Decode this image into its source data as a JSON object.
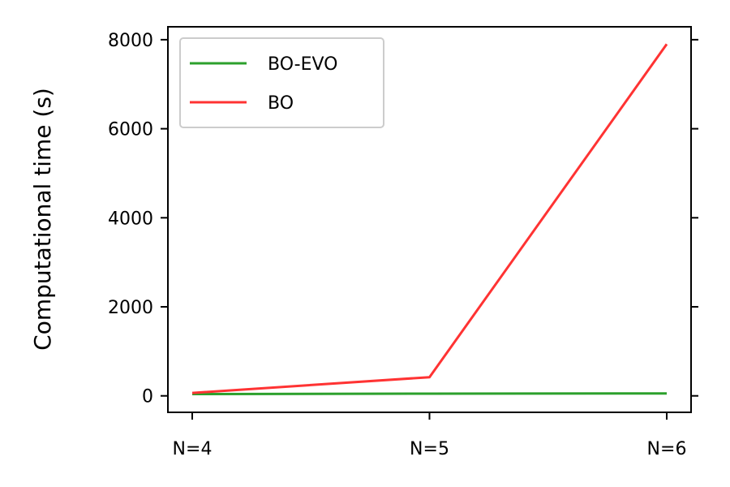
{
  "chart_data": {
    "type": "line",
    "categories": [
      "N=4",
      "N=5",
      "N=6"
    ],
    "series": [
      {
        "name": "BO-EVO",
        "values": [
          40,
          50,
          55
        ],
        "color": "#2ca02c"
      },
      {
        "name": "BO",
        "values": [
          65,
          420,
          7900
        ],
        "color": "#ff3333"
      }
    ],
    "xlabel": "",
    "ylabel": "Computational time (s)",
    "ylim": [
      -370,
      8290
    ],
    "yticks": [
      0,
      2000,
      4000,
      6000,
      8000
    ],
    "ytick_labels": [
      "0",
      "2000",
      "4000",
      "6000",
      "8000"
    ],
    "legend": "top-left",
    "grid": false
  }
}
